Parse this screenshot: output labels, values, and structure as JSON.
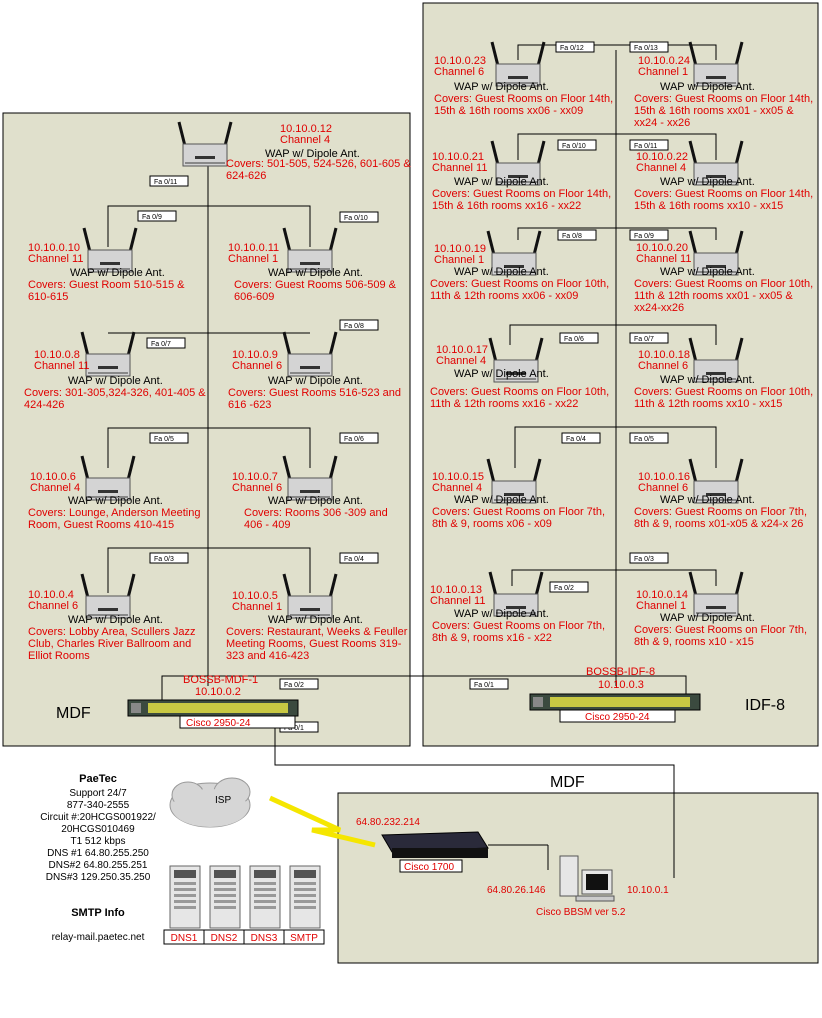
{
  "areas": {
    "mdf_left": "MDF",
    "idf8": "IDF-8",
    "mdf_bottom": "MDF"
  },
  "waps": [
    {
      "id": "w1",
      "ip": "10.10.0.12",
      "ch": "Channel 4",
      "type": "WAP w/ Dipole Ant.",
      "cov": [
        "Covers: 501-505, 524-526, 601-605 &",
        "624-626"
      ]
    },
    {
      "id": "w2",
      "ip": "10.10.0.10",
      "ch": "Channel 11",
      "type": "WAP w/ Dipole Ant.",
      "cov": [
        "Covers: Guest Room 510-515 &",
        "610-615"
      ]
    },
    {
      "id": "w3",
      "ip": "10.10.0.11",
      "ch": "Channel 1",
      "type": "WAP w/ Dipole Ant.",
      "cov": [
        "Covers: Guest Rooms 506-509 &",
        "606-609"
      ]
    },
    {
      "id": "w4",
      "ip": "10.10.0.8",
      "ch": "Channel 11",
      "type": "WAP w/ Dipole Ant.",
      "cov": [
        "Covers: 301-305,324-326, 401-405 &",
        "424-426"
      ]
    },
    {
      "id": "w5",
      "ip": "10.10.0.9",
      "ch": "Channel 6",
      "type": "WAP w/ Dipole Ant.",
      "cov": [
        "Covers: Guest Rooms 516-523 and",
        "616 -623"
      ]
    },
    {
      "id": "w6",
      "ip": "10.10.0.6",
      "ch": "Channel 4",
      "type": "WAP w/ Dipole Ant.",
      "cov": [
        "Covers: Lounge, Anderson Meeting",
        "Room, Guest Rooms 410-415"
      ]
    },
    {
      "id": "w7",
      "ip": "10.10.0.7",
      "ch": "Channel 6",
      "type": "WAP w/ Dipole Ant.",
      "cov": [
        "Covers: Rooms 306 -309 and",
        "406 - 409"
      ]
    },
    {
      "id": "w8",
      "ip": "10.10.0.4",
      "ch": "Channel 6",
      "type": "WAP w/ Dipole Ant.",
      "cov": [
        "Covers: Lobby Area, Scullers Jazz",
        "Club, Charles River Ballroom and",
        "Elliot Rooms"
      ]
    },
    {
      "id": "w9",
      "ip": "10.10.0.5",
      "ch": "Channel 1",
      "type": "WAP w/ Dipole Ant.",
      "cov": [
        "Covers: Restaurant, Weeks & Feuller",
        "Meeting Rooms, Guest Rooms 319-",
        "323 and 416-423"
      ]
    },
    {
      "id": "w10",
      "ip": "10.10.0.23",
      "ch": "Channel 6",
      "type": "WAP w/ Dipole Ant.",
      "cov": [
        "Covers: Guest Rooms on Floor 14th,",
        "15th & 16th rooms xx06 - xx09"
      ]
    },
    {
      "id": "w11",
      "ip": "10.10.0.24",
      "ch": "Channel 1",
      "type": "WAP w/ Dipole Ant.",
      "cov": [
        "Covers: Guest Rooms on Floor 14th,",
        "15th & 16th rooms xx01 - xx05 &",
        "xx24 - xx26"
      ]
    },
    {
      "id": "w12",
      "ip": "10.10.0.21",
      "ch": "Channel 11",
      "type": "WAP w/ Dipole Ant.",
      "cov": [
        "Covers: Guest Rooms on Floor 14th,",
        "15th & 16th rooms xx16 - xx22"
      ]
    },
    {
      "id": "w13",
      "ip": "10.10.0.22",
      "ch": "Channel 4",
      "type": "WAP w/ Dipole Ant.",
      "cov": [
        "Covers: Guest Rooms on Floor 14th,",
        "15th & 16th rooms xx10 - xx15"
      ]
    },
    {
      "id": "w14",
      "ip": "10.10.0.19",
      "ch": "Channel 1",
      "type": "WAP w/ Dipole Ant.",
      "cov": [
        "Covers: Guest Rooms on Floor 10th,",
        "11th & 12th rooms xx06 - xx09"
      ]
    },
    {
      "id": "w15",
      "ip": "10.10.0.20",
      "ch": "Channel 11",
      "type": "WAP w/ Dipole Ant.",
      "cov": [
        "Covers: Guest Rooms on Floor 10th,",
        "11th & 12th rooms xx01 - xx05 &",
        "xx24-xx26"
      ]
    },
    {
      "id": "w16",
      "ip": "10.10.0.17",
      "ch": "Channel 4",
      "type": "WAP w/ Dipole Ant.",
      "cov": [
        "Covers: Guest Rooms on Floor 10th,",
        "11th & 12th rooms xx16 - xx22"
      ]
    },
    {
      "id": "w17",
      "ip": "10.10.0.18",
      "ch": "Channel 6",
      "type": "WAP w/ Dipole Ant.",
      "cov": [
        "Covers: Guest Rooms on Floor 10th,",
        "11th & 12th rooms xx10 - xx15"
      ]
    },
    {
      "id": "w18",
      "ip": "10.10.0.15",
      "ch": "Channel 4",
      "type": "WAP w/ Dipole Ant.",
      "cov": [
        "Covers: Guest Rooms on Floor 7th,",
        "8th & 9, rooms x06 - x09"
      ]
    },
    {
      "id": "w19",
      "ip": "10.10.0.16",
      "ch": "Channel 6",
      "type": "WAP w/ Dipole Ant.",
      "cov": [
        "Covers: Guest Rooms on Floor 7th,",
        "8th & 9, rooms x01-x05 & x24-x 26"
      ]
    },
    {
      "id": "w20",
      "ip": "10.10.0.13",
      "ch": "Channel 11",
      "type": "WAP w/ Dipole Ant.",
      "cov": [
        "Covers: Guest Rooms on Floor 7th,",
        "8th & 9, rooms x16 - x22"
      ]
    },
    {
      "id": "w21",
      "ip": "10.10.0.14",
      "ch": "Channel 1",
      "type": "WAP w/ Dipole Ant.",
      "cov": [
        "Covers: Guest Rooms on Floor 7th,",
        "8th & 9, rooms x10 - x15"
      ]
    }
  ],
  "ports": [
    {
      "id": "p1",
      "label": "Fa 0/11"
    },
    {
      "id": "p2",
      "label": "Fa 0/9"
    },
    {
      "id": "p3",
      "label": "Fa 0/10"
    },
    {
      "id": "p4",
      "label": "Fa 0/7"
    },
    {
      "id": "p5",
      "label": "Fa 0/8"
    },
    {
      "id": "p6",
      "label": "Fa 0/5"
    },
    {
      "id": "p7",
      "label": "Fa 0/6"
    },
    {
      "id": "p8",
      "label": "Fa 0/3"
    },
    {
      "id": "p9",
      "label": "Fa 0/4"
    },
    {
      "id": "p10",
      "label": "Fa 0/2"
    },
    {
      "id": "p11",
      "label": "Fa 0/1"
    },
    {
      "id": "p12",
      "label": "Fa 0/1"
    },
    {
      "id": "p13",
      "label": "Fa 0/12"
    },
    {
      "id": "p14",
      "label": "Fa 0/13"
    },
    {
      "id": "p15",
      "label": "Fa 0/10"
    },
    {
      "id": "p16",
      "label": "Fa 0/11"
    },
    {
      "id": "p17",
      "label": "Fa 0/8"
    },
    {
      "id": "p18",
      "label": "Fa 0/9"
    },
    {
      "id": "p19",
      "label": "Fa 0/6"
    },
    {
      "id": "p20",
      "label": "Fa 0/7"
    },
    {
      "id": "p21",
      "label": "Fa 0/4"
    },
    {
      "id": "p22",
      "label": "Fa 0/5"
    },
    {
      "id": "p23",
      "label": "Fa 0/2"
    },
    {
      "id": "p24",
      "label": "Fa 0/3"
    }
  ],
  "switches": {
    "mdf": {
      "name": "BOSSB-MDF-1",
      "ip": "10.10.0.2",
      "model": "Cisco 2950-24"
    },
    "idf": {
      "name": "BOSSB-IDF-8",
      "ip": "10.10.0.3",
      "model": "Cisco 2950-24"
    }
  },
  "router": {
    "model": "Cisco 1700",
    "wan_ip": "64.80.232.214",
    "lan_ip": "64.80.26.146"
  },
  "bbsm": {
    "label": "Cisco BBSM ver 5.2",
    "ip": "10.10.0.1"
  },
  "isp_label": "ISP",
  "paetec": {
    "title": "PaeTec",
    "lines": [
      "Support 24/7",
      "877-340-2555",
      "Circuit #:20HCGS001922/",
      "20HCGS010469",
      "T1 512 kbps",
      "DNS #1 64.80.255.250",
      "DNS#2 64.80.255.251",
      "DNS#3 129.250.35.250"
    ]
  },
  "smtp": {
    "title": "SMTP Info",
    "relay": "relay-mail.paetec.net"
  },
  "servers": [
    "DNS1",
    "DNS2",
    "DNS3",
    "SMTP"
  ]
}
